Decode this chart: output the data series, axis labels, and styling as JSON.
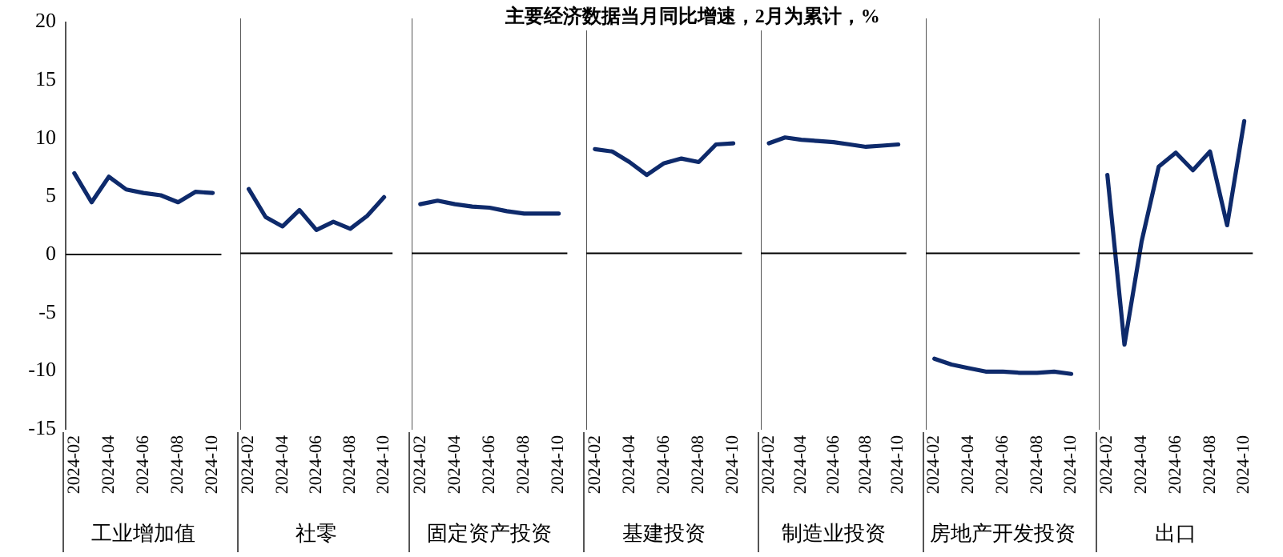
{
  "chart_data": [
    {
      "type": "line",
      "xlabel": "工业增加值",
      "categories": [
        "2024-02",
        null,
        "2024-04",
        null,
        "2024-06",
        null,
        "2024-08",
        null,
        "2024-10"
      ],
      "marker": "none",
      "ylim": [
        -15,
        20
      ],
      "yticks": [
        -15,
        -10,
        -5,
        0,
        5,
        10,
        15,
        20
      ],
      "ref_lines": [
        {
          "axis": "y",
          "value": 0
        }
      ],
      "series": [
        {
          "color": "#0e2a6b",
          "values": [
            7.0,
            4.5,
            6.7,
            5.6,
            5.3,
            5.1,
            4.5,
            5.4,
            5.3
          ]
        }
      ]
    },
    {
      "type": "line",
      "xlabel": "社零",
      "categories": [
        "2024-02",
        null,
        "2024-04",
        null,
        "2024-06",
        null,
        "2024-08",
        null,
        "2024-10"
      ],
      "marker": "none",
      "ylim": [
        -15,
        20
      ],
      "yticks": [
        -15,
        -10,
        -5,
        0,
        5,
        10,
        15,
        20
      ],
      "tick_labels": "x",
      "ref_lines": [
        {
          "axis": "y",
          "value": 0
        }
      ],
      "series": [
        {
          "color": "#0e2a6b",
          "values": [
            5.5,
            3.1,
            2.3,
            3.7,
            2.0,
            2.7,
            2.1,
            3.2,
            4.8
          ]
        }
      ]
    },
    {
      "type": "line",
      "xlabel": "固定资产投资",
      "categories": [
        "2024-02",
        null,
        "2024-04",
        null,
        "2024-06",
        null,
        "2024-08",
        null,
        "2024-10"
      ],
      "marker": "none",
      "ylim": [
        -15,
        20
      ],
      "yticks": [
        -15,
        -10,
        -5,
        0,
        5,
        10,
        15,
        20
      ],
      "tick_labels": "x",
      "ref_lines": [
        {
          "axis": "y",
          "value": 0
        }
      ],
      "series": [
        {
          "color": "#0e2a6b",
          "values": [
            4.2,
            4.5,
            4.2,
            4.0,
            3.9,
            3.6,
            3.4,
            3.4,
            3.4
          ]
        }
      ]
    },
    {
      "type": "line",
      "title": "主要经济数据当月同比增速，2月为累计，%",
      "xlabel": "基建投资",
      "categories": [
        "2024-02",
        null,
        "2024-04",
        null,
        "2024-06",
        null,
        "2024-08",
        null,
        "2024-10"
      ],
      "marker": "none",
      "ylim": [
        -15,
        20
      ],
      "yticks": [
        -15,
        -10,
        -5,
        0,
        5,
        10,
        15,
        20
      ],
      "tick_labels": "x",
      "ref_lines": [
        {
          "axis": "y",
          "value": 0
        }
      ],
      "series": [
        {
          "color": "#0e2a6b",
          "values": [
            8.9,
            8.7,
            7.8,
            6.7,
            7.7,
            8.1,
            7.8,
            9.3,
            9.4
          ]
        }
      ]
    },
    {
      "type": "line",
      "xlabel": "制造业投资",
      "categories": [
        "2024-02",
        null,
        "2024-04",
        null,
        "2024-06",
        null,
        "2024-08",
        null,
        "2024-10"
      ],
      "marker": "none",
      "ylim": [
        -15,
        20
      ],
      "yticks": [
        -15,
        -10,
        -5,
        0,
        5,
        10,
        15,
        20
      ],
      "tick_labels": "x",
      "ref_lines": [
        {
          "axis": "y",
          "value": 0
        }
      ],
      "series": [
        {
          "color": "#0e2a6b",
          "values": [
            9.4,
            9.9,
            9.7,
            9.6,
            9.5,
            9.3,
            9.1,
            9.2,
            9.3
          ]
        }
      ]
    },
    {
      "type": "line",
      "xlabel": "房地产开发投资",
      "categories": [
        "2024-02",
        null,
        "2024-04",
        null,
        "2024-06",
        null,
        "2024-08",
        null,
        "2024-10"
      ],
      "marker": "none",
      "ylim": [
        -15,
        20
      ],
      "yticks": [
        -15,
        -10,
        -5,
        0,
        5,
        10,
        15,
        20
      ],
      "tick_labels": "x",
      "ref_lines": [
        {
          "axis": "y",
          "value": 0
        }
      ],
      "series": [
        {
          "color": "#0e2a6b",
          "values": [
            -9.0,
            -9.5,
            -9.8,
            -10.1,
            -10.1,
            -10.2,
            -10.2,
            -10.1,
            -10.3
          ]
        }
      ]
    },
    {
      "type": "line",
      "xlabel": "出口",
      "categories": [
        "2024-02",
        null,
        "2024-04",
        null,
        "2024-06",
        null,
        "2024-08",
        null,
        "2024-10"
      ],
      "marker": "none",
      "ylim": [
        -15,
        20
      ],
      "yticks": [
        -15,
        -10,
        -5,
        0,
        5,
        10,
        15,
        20
      ],
      "tick_labels": "x",
      "ref_lines": [
        {
          "axis": "y",
          "value": 0
        }
      ],
      "series": [
        {
          "color": "#0e2a6b",
          "values": [
            6.7,
            -7.8,
            1.0,
            7.4,
            8.6,
            7.1,
            8.7,
            2.4,
            11.3
          ]
        }
      ]
    }
  ]
}
